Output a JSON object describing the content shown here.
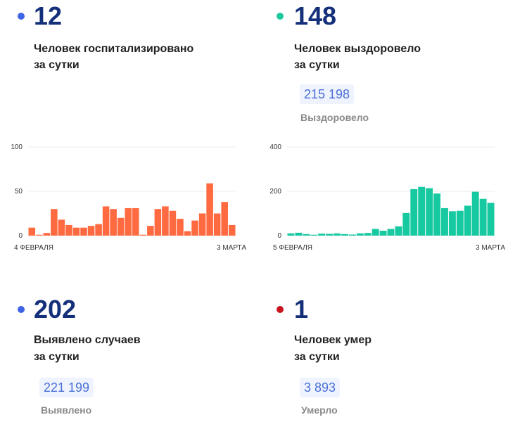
{
  "hospitalized": {
    "value": "12",
    "label_line1": "Человек госпитализировано",
    "label_line2": "за сутки",
    "dot_color": "#3f63e6"
  },
  "recovered": {
    "value": "148",
    "label_line1": "Человек выздоровело",
    "label_line2": "за сутки",
    "total": "215 198",
    "total_label": "Выздоровело",
    "dot_color": "#1ec8a0"
  },
  "cases": {
    "value": "202",
    "label_line1": "Выявлено случаев",
    "label_line2": "за сутки",
    "total": "221 199",
    "total_label": "Выявлено",
    "dot_color": "#3f63e6"
  },
  "deaths": {
    "value": "1",
    "label_line1": "Человек умер",
    "label_line2": "за сутки",
    "total": "3 893",
    "total_label": "Умерло",
    "dot_color": "#c8141e"
  },
  "chart_data": [
    {
      "type": "bar",
      "color": "#ff6a40",
      "ylim": [
        0,
        100
      ],
      "yticks": [
        "0",
        "50",
        "100"
      ],
      "x_start_label": "4 ФЕВРАЛЯ",
      "x_end_label": "3 МАРТА",
      "grid": true,
      "values": [
        9,
        1,
        3,
        30,
        18,
        12,
        9,
        9,
        11,
        13,
        33,
        30,
        20,
        31,
        31,
        1,
        11,
        30,
        33,
        28,
        19,
        5,
        17,
        25,
        59,
        25,
        38,
        12
      ]
    },
    {
      "type": "bar",
      "color": "#17c9a0",
      "ylim": [
        0,
        400
      ],
      "yticks": [
        "0",
        "200",
        "400"
      ],
      "x_start_label": "5 ФЕВРАЛЯ",
      "x_end_label": "3 МАРТА",
      "grid": true,
      "values": [
        10,
        13,
        7,
        4,
        9,
        8,
        10,
        7,
        5,
        10,
        12,
        30,
        22,
        30,
        42,
        102,
        210,
        220,
        214,
        190,
        124,
        110,
        112,
        135,
        198,
        166,
        148
      ]
    }
  ]
}
